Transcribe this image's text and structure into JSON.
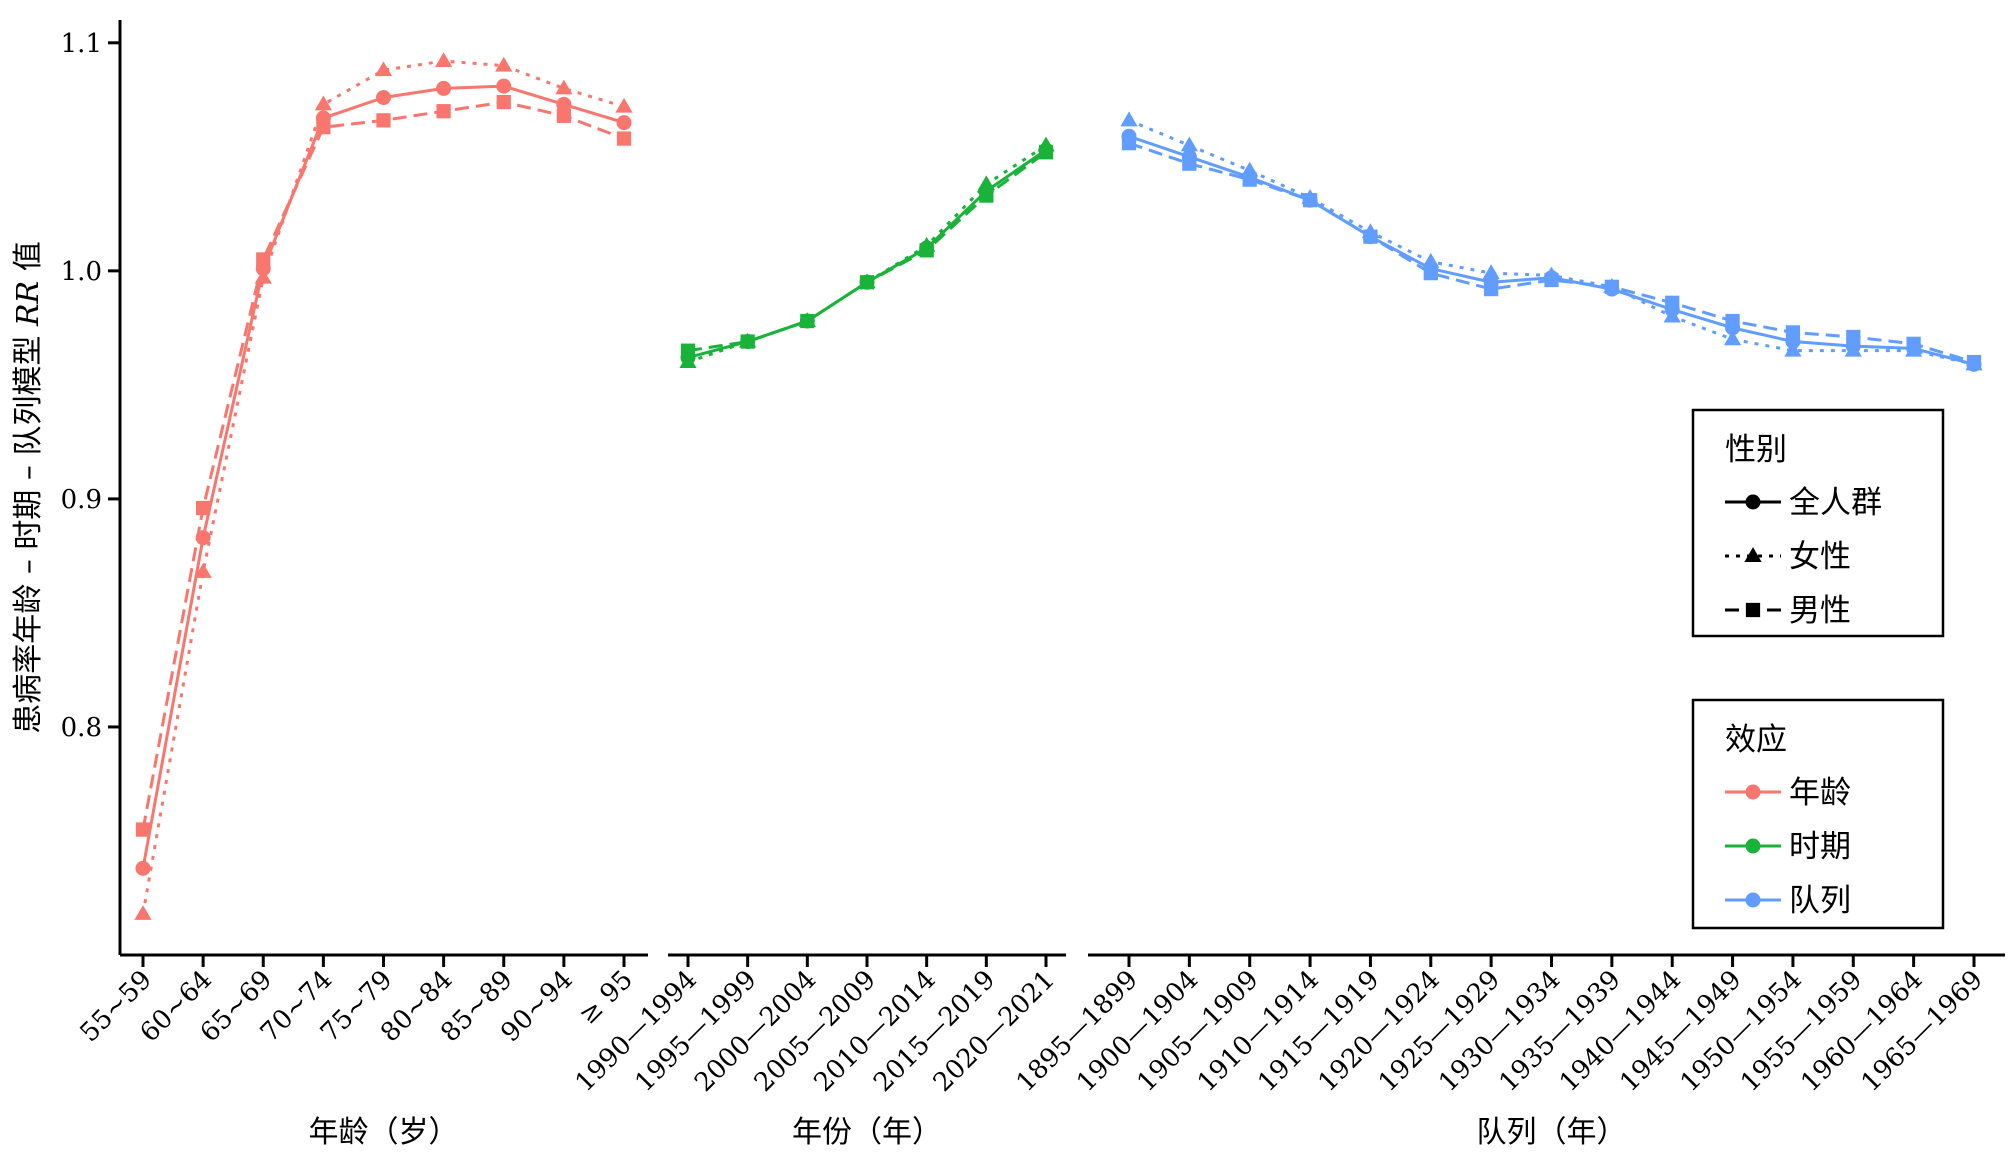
{
  "chart_data": {
    "type": "line",
    "ylabel_parts": [
      "患病率年龄 – 时期 – 队列模型 ",
      "RR",
      " 值"
    ],
    "ylim": [
      0.7,
      1.11
    ],
    "yticks": [
      0.8,
      0.9,
      1.0,
      1.1
    ],
    "ytick_labels": [
      "0.8",
      "0.9",
      "1.0",
      "1.1"
    ],
    "panels": [
      {
        "effect": "年龄",
        "xlabel": "年龄（岁）",
        "color": "#F8766D",
        "categories": [
          "55~59",
          "60~64",
          "65~69",
          "70~74",
          "75~79",
          "80~84",
          "85~89",
          "90~94",
          "≥ 95"
        ],
        "series": [
          {
            "name": "全人群",
            "values": [
              0.738,
              0.883,
              1.001,
              1.067,
              1.076,
              1.08,
              1.081,
              1.073,
              1.065
            ]
          },
          {
            "name": "女性",
            "values": [
              0.718,
              0.868,
              0.997,
              1.073,
              1.088,
              1.092,
              1.09,
              1.08,
              1.072
            ]
          },
          {
            "name": "男性",
            "values": [
              0.755,
              0.896,
              1.005,
              1.063,
              1.066,
              1.07,
              1.074,
              1.068,
              1.058
            ]
          }
        ]
      },
      {
        "effect": "时期",
        "xlabel": "年份（年）",
        "color": "#1AB33A",
        "categories": [
          "1990—1994",
          "1995—1999",
          "2000—2004",
          "2005—2009",
          "2010—2014",
          "2015—2019",
          "2020—2021"
        ],
        "series": [
          {
            "name": "全人群",
            "values": [
              0.962,
              0.969,
              0.978,
              0.995,
              1.01,
              1.035,
              1.053
            ]
          },
          {
            "name": "女性",
            "values": [
              0.96,
              0.969,
              0.978,
              0.995,
              1.011,
              1.038,
              1.055
            ]
          },
          {
            "name": "男性",
            "values": [
              0.965,
              0.969,
              0.978,
              0.995,
              1.009,
              1.033,
              1.052
            ]
          }
        ]
      },
      {
        "effect": "队列",
        "xlabel": "队列（年）",
        "color": "#619CFF",
        "categories": [
          "1895—1899",
          "1900—1904",
          "1905—1909",
          "1910—1914",
          "1915—1919",
          "1920—1924",
          "1925—1929",
          "1930—1934",
          "1935—1939",
          "1940—1944",
          "1945—1949",
          "1950—1954",
          "1955—1959",
          "1960—1964",
          "1965—1969"
        ],
        "series": [
          {
            "name": "全人群",
            "values": [
              1.059,
              1.05,
              1.041,
              1.031,
              1.015,
              1.001,
              0.995,
              0.997,
              0.992,
              0.983,
              0.975,
              0.969,
              0.967,
              0.966,
              0.959
            ]
          },
          {
            "name": "女性",
            "values": [
              1.066,
              1.055,
              1.044,
              1.032,
              1.017,
              1.004,
              0.999,
              0.998,
              0.993,
              0.98,
              0.97,
              0.965,
              0.965,
              0.965,
              0.959
            ]
          },
          {
            "name": "男性",
            "values": [
              1.056,
              1.047,
              1.04,
              1.031,
              1.015,
              0.999,
              0.992,
              0.996,
              0.993,
              0.986,
              0.978,
              0.973,
              0.971,
              0.968,
              0.96
            ]
          }
        ]
      }
    ],
    "legends": [
      {
        "title": "性别",
        "items": [
          {
            "label": "全人群",
            "dash": "solid",
            "marker": "circle",
            "color": "#000000"
          },
          {
            "label": "女性",
            "dash": "dotted",
            "marker": "triangle",
            "color": "#000000"
          },
          {
            "label": "男性",
            "dash": "dashed",
            "marker": "square",
            "color": "#000000"
          }
        ]
      },
      {
        "title": "效应",
        "items": [
          {
            "label": "年龄",
            "dash": "solid",
            "marker": "circle",
            "color": "#F8766D"
          },
          {
            "label": "时期",
            "dash": "solid",
            "marker": "circle",
            "color": "#1AB33A"
          },
          {
            "label": "队列",
            "dash": "solid",
            "marker": "circle",
            "color": "#619CFF"
          }
        ]
      }
    ]
  }
}
